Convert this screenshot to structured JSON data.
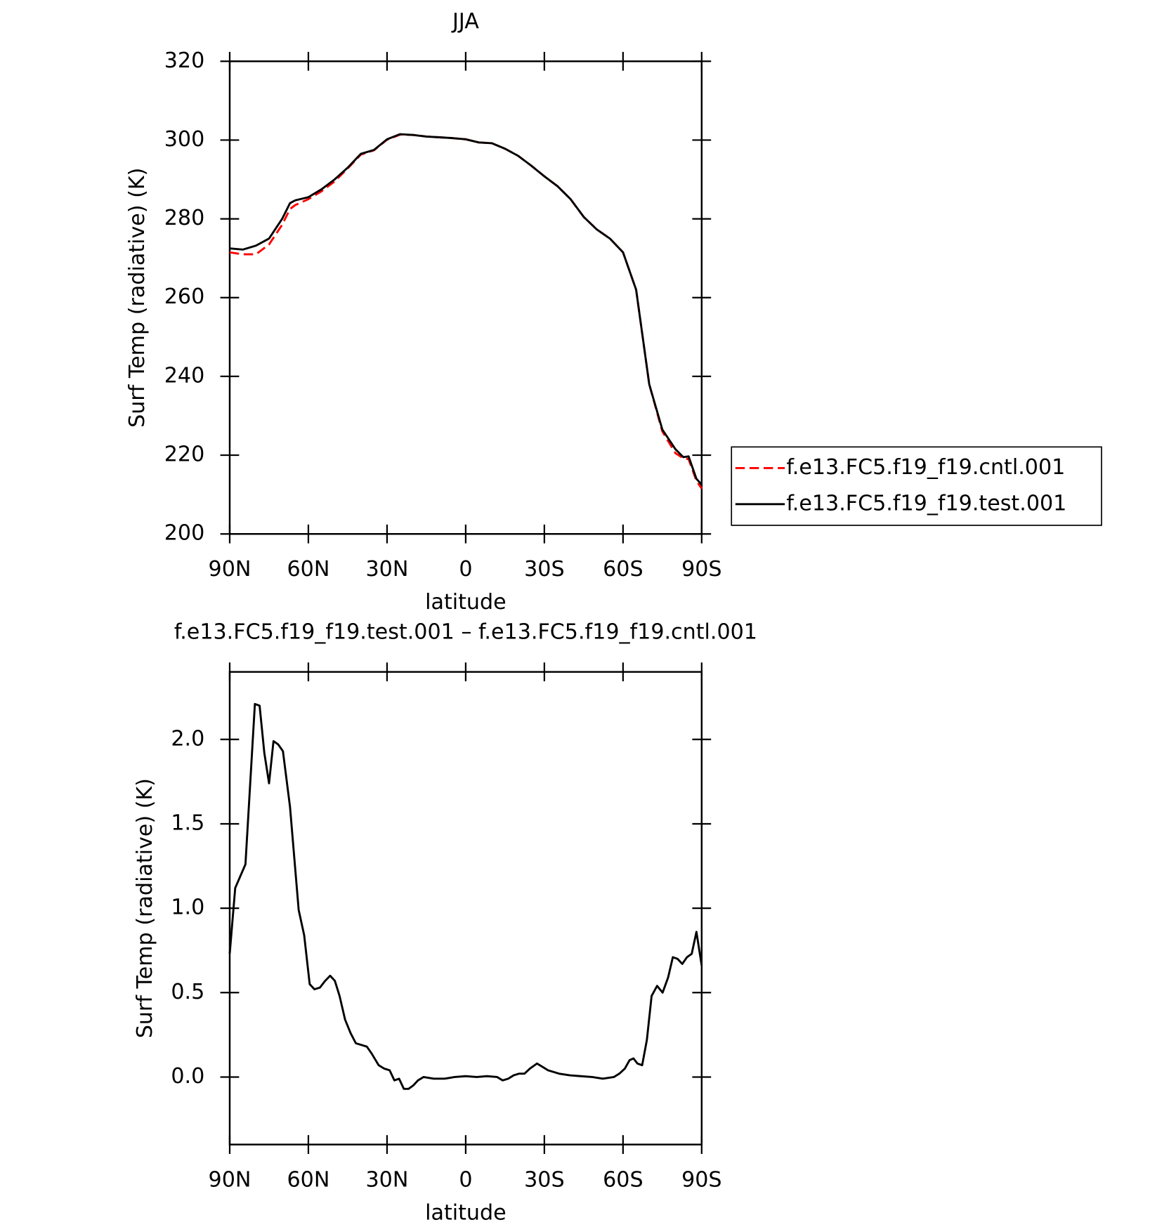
{
  "chart_data": [
    {
      "type": "line",
      "title": "JJA",
      "xlabel": "latitude",
      "ylabel": "Surf Temp (radiative) (K)",
      "x": [
        90,
        85,
        80,
        75,
        70,
        67,
        65,
        60,
        55,
        50,
        45,
        40,
        35,
        30,
        25,
        20,
        15,
        10,
        5,
        0,
        -5,
        -10,
        -15,
        -20,
        -25,
        -30,
        -35,
        -40,
        -45,
        -50,
        -55,
        -60,
        -65,
        -70,
        -75,
        -80,
        -83,
        -85,
        -88,
        -90
      ],
      "series": [
        {
          "name": "f.e13.FC5.f19_f19.cntl.001",
          "color": "#ff0000",
          "linestyle": "dashed",
          "values": [
            271.5,
            271,
            271,
            273.5,
            278.5,
            282.5,
            283.5,
            285,
            287,
            289.5,
            292.8,
            296.3,
            297.4,
            300.1,
            301.4,
            301.3,
            300.9,
            300.7,
            300.5,
            300.2,
            299.4,
            299.2,
            297.8,
            296,
            293.5,
            290.8,
            288.3,
            285,
            280.5,
            277.3,
            275,
            271.5,
            262,
            238,
            226,
            220.5,
            219.2,
            219,
            213.5,
            211.5
          ]
        },
        {
          "name": "f.e13.FC5.f19_f19.test.001",
          "color": "#000000",
          "linestyle": "solid",
          "values": [
            272.5,
            272.2,
            273.2,
            275,
            280,
            284,
            284.7,
            285.5,
            287.5,
            290,
            293,
            296.5,
            297.5,
            300.2,
            301.5,
            301.3,
            300.9,
            300.7,
            300.5,
            300.2,
            299.4,
            299.2,
            297.8,
            296,
            293.5,
            290.8,
            288.3,
            285,
            280.5,
            277.3,
            275,
            271.5,
            262,
            238,
            226.5,
            221.5,
            219.5,
            219.7,
            214,
            212.5
          ]
        }
      ],
      "xlim": [
        90,
        -90
      ],
      "xticks": [
        {
          "value": 90,
          "label": "90N"
        },
        {
          "value": 60,
          "label": "60N"
        },
        {
          "value": 30,
          "label": "30N"
        },
        0,
        {
          "value": -30,
          "label": "30S"
        },
        {
          "value": -60,
          "label": "60S"
        },
        {
          "value": -90,
          "label": "90S"
        }
      ],
      "ylim": [
        200,
        320
      ],
      "yticks": [
        200,
        220,
        240,
        260,
        280,
        300,
        320
      ],
      "legend": "right"
    },
    {
      "type": "line",
      "title": "f.e13.FC5.f19_f19.test.001 – f.e13.FC5.f19_f19.cntl.001",
      "xlabel": "latitude",
      "ylabel": "Surf Temp (radiative) (K)",
      "x": [
        90,
        87.9,
        84,
        80.4,
        78.6,
        76.8,
        75,
        73.3,
        71.5,
        69.7,
        67,
        63.7,
        61.6,
        59.5,
        57.7,
        55.6,
        53.6,
        51.7,
        49.9,
        48.1,
        46,
        43.9,
        41.9,
        39.8,
        37.7,
        35.9,
        33.2,
        31.1,
        29,
        27.2,
        25.4,
        23.6,
        21.8,
        20,
        18.2,
        16.1,
        12.2,
        8.1,
        4.2,
        0,
        -4.2,
        -8.1,
        -12,
        -14.1,
        -16.2,
        -18.3,
        -20.4,
        -22.4,
        -24.5,
        -27.2,
        -29.3,
        -31.4,
        -35.6,
        -39.8,
        -43.9,
        -48.2,
        -52.3,
        -56.5,
        -58.6,
        -60.7,
        -62.5,
        -64,
        -65.5,
        -67.3,
        -69.1,
        -70.9,
        -73,
        -75.1,
        -77.2,
        -79,
        -80.8,
        -82.6,
        -84.4,
        -86.2,
        -88,
        -90
      ],
      "series": [
        {
          "color": "#000000",
          "linestyle": "solid",
          "values": [
            0.73,
            1.12,
            1.26,
            2.21,
            2.2,
            1.92,
            1.74,
            1.99,
            1.97,
            1.93,
            1.6,
            0.99,
            0.84,
            0.55,
            0.52,
            0.53,
            0.57,
            0.6,
            0.57,
            0.48,
            0.34,
            0.26,
            0.2,
            0.19,
            0.18,
            0.14,
            0.07,
            0.05,
            0.04,
            -0.02,
            -0.01,
            -0.07,
            -0.07,
            -0.05,
            -0.02,
            0,
            -0.01,
            -0.01,
            0,
            0.005,
            0,
            0.005,
            0,
            -0.02,
            -0.01,
            0.01,
            0.02,
            0.02,
            0.05,
            0.08,
            0.06,
            0.04,
            0.02,
            0.01,
            0.005,
            0,
            -0.01,
            0,
            0.02,
            0.05,
            0.1,
            0.11,
            0.08,
            0.07,
            0.22,
            0.48,
            0.54,
            0.5,
            0.59,
            0.71,
            0.7,
            0.67,
            0.71,
            0.73,
            0.86,
            0.66
          ]
        }
      ],
      "xlim": [
        90,
        -90
      ],
      "xticks": [
        {
          "value": 90,
          "label": "90N"
        },
        {
          "value": 60,
          "label": "60N"
        },
        {
          "value": 30,
          "label": "30N"
        },
        0,
        {
          "value": -30,
          "label": "30S"
        },
        {
          "value": -60,
          "label": "60S"
        },
        {
          "value": -90,
          "label": "90S"
        }
      ],
      "ylim": [
        -0.4,
        2.4
      ],
      "yticks": [
        {
          "value": 0,
          "label": "0.0"
        },
        0.5,
        {
          "value": 1,
          "label": "1.0"
        },
        1.5,
        {
          "value": 2,
          "label": "2.0"
        }
      ]
    }
  ]
}
